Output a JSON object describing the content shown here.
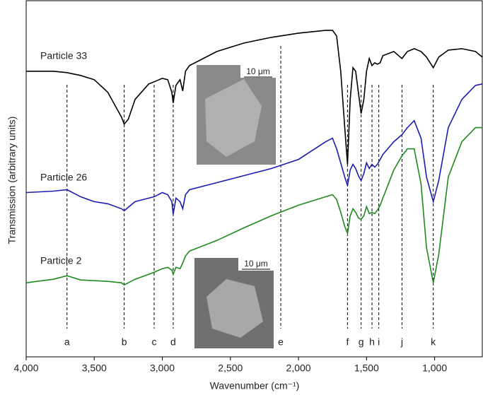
{
  "chart_data": {
    "type": "line",
    "xlabel": "Wavenumber (cm⁻¹)",
    "ylabel": "Transmission (arbitrary units)",
    "xlim": [
      4000,
      650
    ],
    "ylim": [
      0,
      505
    ],
    "xticks": [
      {
        "value": 4000,
        "label": "4,000"
      },
      {
        "value": 3500,
        "label": "3,500"
      },
      {
        "value": 3000,
        "label": "3,000"
      },
      {
        "value": 2500,
        "label": "2,500"
      },
      {
        "value": 2000,
        "label": "2,000"
      },
      {
        "value": 1500,
        "label": "1,500"
      },
      {
        "value": 1000,
        "label": "1,000"
      }
    ],
    "x": [
      4000,
      3800,
      3700,
      3600,
      3500,
      3400,
      3300,
      3280,
      3250,
      3200,
      3100,
      3060,
      3000,
      2960,
      2930,
      2920,
      2900,
      2870,
      2850,
      2830,
      2800,
      2600,
      2400,
      2200,
      2000,
      1800,
      1750,
      1720,
      1690,
      1660,
      1640,
      1620,
      1600,
      1580,
      1560,
      1540,
      1520,
      1500,
      1480,
      1460,
      1440,
      1420,
      1400,
      1380,
      1300,
      1240,
      1200,
      1150,
      1100,
      1060,
      1010,
      970,
      900,
      800,
      700,
      650
    ],
    "series": [
      {
        "name": "Particle 33",
        "color": "#000000",
        "values": [
          405,
          405,
          403,
          399,
          393,
          375,
          340,
          330,
          337,
          365,
          387,
          390,
          395,
          393,
          375,
          360,
          385,
          393,
          377,
          405,
          413,
          433,
          445,
          453,
          459,
          463,
          463,
          455,
          405,
          325,
          273,
          365,
          410,
          405,
          375,
          345,
          365,
          405,
          423,
          413,
          417,
          415,
          417,
          427,
          433,
          423,
          433,
          437,
          433,
          425,
          410,
          425,
          435,
          437,
          433,
          425
        ]
      },
      {
        "name": "Particle 26",
        "color": "#1c1cb0",
        "values": [
          233,
          235,
          237,
          227,
          220,
          217,
          210,
          207,
          212,
          220,
          225,
          227,
          233,
          230,
          220,
          202,
          225,
          220,
          210,
          230,
          237,
          247,
          257,
          267,
          280,
          305,
          310,
          295,
          275,
          255,
          243,
          265,
          273,
          267,
          257,
          250,
          260,
          275,
          267,
          273,
          269,
          273,
          280,
          287,
          305,
          315,
          325,
          335,
          310,
          255,
          220,
          250,
          325,
          365,
          385,
          387
        ]
      },
      {
        "name": "Particle 2",
        "color": "#1e8a1e",
        "values": [
          105,
          110,
          115,
          109,
          108,
          107,
          105,
          102,
          105,
          110,
          117,
          120,
          125,
          127,
          123,
          117,
          127,
          125,
          133,
          143,
          150,
          165,
          183,
          200,
          215,
          227,
          230,
          223,
          205,
          185,
          175,
          200,
          210,
          205,
          197,
          195,
          200,
          213,
          203,
          205,
          203,
          208,
          215,
          225,
          265,
          285,
          295,
          295,
          245,
          155,
          105,
          145,
          255,
          305,
          325,
          325
        ]
      }
    ],
    "peaks": [
      {
        "x": 3700,
        "label": "a"
      },
      {
        "x": 3280,
        "label": "b"
      },
      {
        "x": 3060,
        "label": "c"
      },
      {
        "x": 2920,
        "label": "d"
      },
      {
        "x": 2130,
        "label": "e"
      },
      {
        "x": 1640,
        "label": "f"
      },
      {
        "x": 1540,
        "label": "g"
      },
      {
        "x": 1460,
        "label": "h"
      },
      {
        "x": 1410,
        "label": "i"
      },
      {
        "x": 1240,
        "label": "j"
      },
      {
        "x": 1010,
        "label": "k"
      }
    ],
    "insets": [
      {
        "scale": "10 μm"
      },
      {
        "scale": "10 μm"
      }
    ]
  }
}
